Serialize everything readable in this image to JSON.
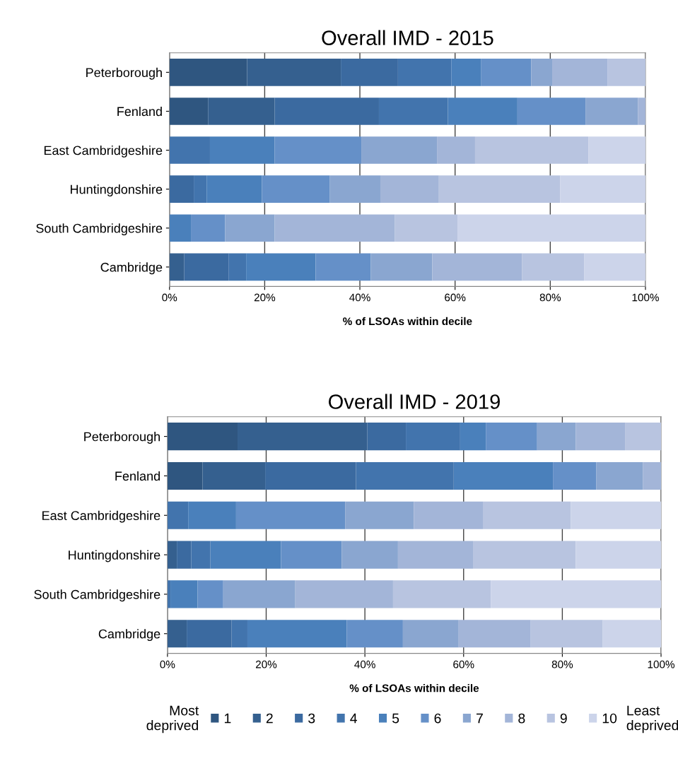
{
  "chart_data": [
    {
      "type": "bar",
      "orientation": "horizontal",
      "stacked": true,
      "title": "Overall IMD - 2015",
      "xlabel": "% of LSOAs within decile",
      "categories": [
        "Peterborough",
        "Fenland",
        "East Cambridgeshire",
        "Huntingdonshire",
        "South Cambridgeshire",
        "Cambridge"
      ],
      "xlim": [
        0,
        100
      ],
      "xticks": [
        {
          "value": 0,
          "label": "0%"
        },
        {
          "value": 20,
          "label": "20%"
        },
        {
          "value": 40,
          "label": "40%"
        },
        {
          "value": 60,
          "label": "60%"
        },
        {
          "value": 80,
          "label": "80%"
        },
        {
          "value": 100,
          "label": "100%"
        }
      ],
      "grid": "x",
      "legend": "bottom",
      "series": [
        {
          "name": "1",
          "color": "#2f5680",
          "values": [
            16.3,
            8.1,
            0,
            0,
            0,
            0
          ]
        },
        {
          "name": "2",
          "color": "#35608f",
          "values": [
            19.7,
            14,
            0,
            0,
            0,
            3.1
          ]
        },
        {
          "name": "3",
          "color": "#3b6aa0",
          "values": [
            12,
            21.9,
            0,
            5.1,
            0,
            9.3
          ]
        },
        {
          "name": "4",
          "color": "#4274ad",
          "values": [
            11.2,
            14.5,
            8.5,
            2.7,
            0,
            3.7
          ]
        },
        {
          "name": "5",
          "color": "#4a80bb",
          "values": [
            6.3,
            14.6,
            13.6,
            11.6,
            4.5,
            14.6
          ]
        },
        {
          "name": "6",
          "color": "#6590c8",
          "values": [
            10.5,
            14.3,
            18.2,
            14.3,
            7.2,
            11.6
          ]
        },
        {
          "name": "7",
          "color": "#8aa6d0",
          "values": [
            4.4,
            11,
            15.9,
            10.6,
            10.4,
            12.9
          ]
        },
        {
          "name": "8",
          "color": "#a3b5d8",
          "values": [
            11.6,
            1.6,
            8,
            12.3,
            25.2,
            18.9
          ]
        },
        {
          "name": "9",
          "color": "#b8c4e0",
          "values": [
            8,
            0,
            23.8,
            25.5,
            13.2,
            13
          ]
        },
        {
          "name": "10",
          "color": "#ccd4ea",
          "values": [
            0,
            0,
            12,
            17.9,
            39.5,
            12.9
          ]
        }
      ]
    },
    {
      "type": "bar",
      "orientation": "horizontal",
      "stacked": true,
      "title": "Overall IMD - 2019",
      "xlabel": "% of LSOAs within decile",
      "categories": [
        "Peterborough",
        "Fenland",
        "East Cambridgeshire",
        "Huntingdonshire",
        "South Cambridgeshire",
        "Cambridge"
      ],
      "xlim": [
        0,
        100
      ],
      "xticks": [
        {
          "value": 0,
          "label": "0%"
        },
        {
          "value": 20,
          "label": "20%"
        },
        {
          "value": 40,
          "label": "40%"
        },
        {
          "value": 60,
          "label": "60%"
        },
        {
          "value": 80,
          "label": "80%"
        },
        {
          "value": 100,
          "label": "100%"
        }
      ],
      "grid": "x",
      "legend": "bottom",
      "annotations": [
        "Most\ndeprived",
        "Least\ndeprived"
      ],
      "series": [
        {
          "name": "1",
          "color": "#2f5680",
          "values": [
            14.2,
            7.1,
            0,
            0,
            0,
            0
          ]
        },
        {
          "name": "2",
          "color": "#35608f",
          "values": [
            26.3,
            12.7,
            0,
            1.9,
            0,
            3.9
          ]
        },
        {
          "name": "3",
          "color": "#3b6aa0",
          "values": [
            7.8,
            18.4,
            0,
            2.9,
            0,
            9.1
          ]
        },
        {
          "name": "4",
          "color": "#4274ad",
          "values": [
            11,
            19.8,
            4.2,
            3.9,
            0.6,
            3.2
          ]
        },
        {
          "name": "5",
          "color": "#4a80bb",
          "values": [
            5.2,
            20.1,
            9.7,
            14.3,
            5.5,
            20.1
          ]
        },
        {
          "name": "6",
          "color": "#6590c8",
          "values": [
            10.4,
            8.8,
            22.1,
            12.3,
            5.2,
            11.4
          ]
        },
        {
          "name": "7",
          "color": "#8aa6d0",
          "values": [
            7.8,
            9.4,
            13.9,
            11.4,
            14.6,
            11.3
          ]
        },
        {
          "name": "8",
          "color": "#a3b5d8",
          "values": [
            10,
            3.7,
            14,
            15.2,
            19.8,
            14.6
          ]
        },
        {
          "name": "9",
          "color": "#b8c4e0",
          "values": [
            7.3,
            0,
            17.8,
            20.8,
            19.8,
            14.6
          ]
        },
        {
          "name": "10",
          "color": "#ccd4ea",
          "values": [
            0,
            0,
            18.3,
            17.3,
            34.5,
            11.8
          ]
        }
      ]
    }
  ]
}
